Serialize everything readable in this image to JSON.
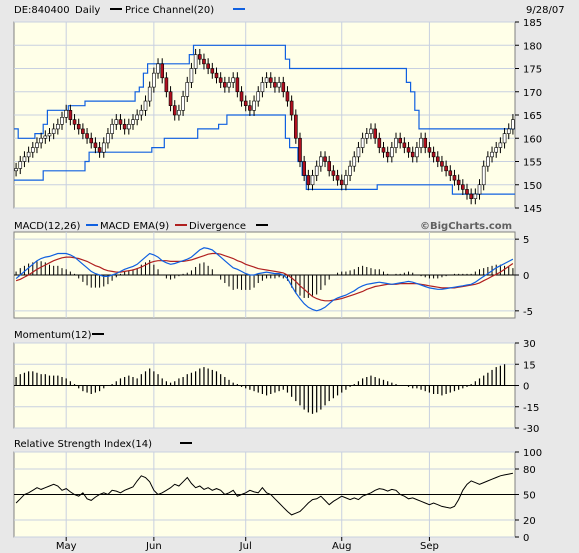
{
  "header": {
    "symbol": "DE:840400",
    "frequency": "Daily",
    "overlay": "Price Channel(20)",
    "date": "9/28/07",
    "watermark": "©BigCharts.com"
  },
  "colors": {
    "plot_bg": "#ffffe8",
    "frame_bg": "#e8e8e8",
    "up_candle": "#ffffff",
    "down_candle": "#b01020",
    "channel": "#1060e0",
    "macd_line": "#1060e0",
    "macd_ema": "#b02020",
    "bars": "#000000",
    "grid": "#c8d0e0"
  },
  "chart_data": [
    {
      "type": "candlestick",
      "title": "DE:840400 Daily",
      "legend": [
        "Price Channel(20)"
      ],
      "x_ticks": [
        "May",
        "Jun",
        "Jul",
        "Aug",
        "Sep"
      ],
      "x_tick_index": [
        12,
        33,
        55,
        78,
        99
      ],
      "y_ticks": [
        145,
        150,
        155,
        160,
        165,
        170,
        175,
        180,
        185
      ],
      "ylim": [
        145,
        185
      ],
      "n_days": 120,
      "close": [
        153.5,
        155,
        156,
        157,
        158,
        159,
        160,
        160.5,
        161,
        162,
        163,
        164.5,
        166,
        164,
        163,
        162,
        161,
        160,
        159,
        158,
        157,
        159,
        161,
        163,
        164,
        163,
        162,
        163,
        164,
        165,
        166,
        168,
        171,
        174,
        176,
        173,
        170,
        167,
        165,
        166,
        169,
        172,
        175,
        178,
        177,
        176,
        175,
        174,
        173,
        172,
        171,
        172,
        173,
        170,
        168,
        167,
        166,
        168,
        170,
        172,
        173,
        172,
        171,
        172,
        170,
        168,
        165,
        160,
        155,
        152,
        150,
        152,
        154,
        156,
        155,
        153,
        152,
        151,
        150,
        152,
        154,
        156,
        158,
        160,
        161,
        162,
        160,
        158,
        157,
        156,
        158,
        160,
        159,
        158,
        157,
        156,
        158,
        160,
        158,
        157,
        156,
        155,
        154,
        153,
        152,
        151,
        150,
        149,
        148,
        147,
        148,
        150,
        154,
        156,
        157,
        158,
        159,
        161,
        162,
        164
      ],
      "channel_upper": [
        162,
        160,
        160,
        160,
        160,
        161,
        161,
        163,
        166,
        166,
        166,
        166,
        166,
        167,
        167,
        167,
        167,
        168,
        168,
        168,
        168,
        168,
        168,
        168,
        168,
        168,
        168,
        168,
        168,
        170,
        171,
        174,
        176,
        176,
        176,
        176,
        176,
        176,
        176,
        176,
        176,
        176,
        178,
        180,
        180,
        180,
        180,
        180,
        180,
        180,
        180,
        180,
        180,
        180,
        180,
        180,
        180,
        180,
        180,
        180,
        180,
        180,
        180,
        180,
        180,
        177,
        175,
        175,
        175,
        175,
        175,
        175,
        175,
        175,
        175,
        175,
        175,
        175,
        175,
        175,
        175,
        175,
        175,
        175,
        175,
        175,
        175,
        175,
        175,
        175,
        175,
        175,
        175,
        175,
        172,
        170,
        166,
        162,
        162,
        162,
        162,
        162,
        162,
        162,
        162,
        162,
        162,
        162,
        162,
        162,
        162,
        162,
        162,
        162,
        162,
        162,
        162,
        162,
        162,
        162
      ],
      "channel_lower": [
        151,
        151,
        151,
        151,
        151,
        151,
        151,
        153,
        153,
        153,
        153,
        153,
        153,
        153,
        153,
        153,
        153,
        155,
        157,
        157,
        157,
        157,
        157,
        157,
        157,
        157,
        157,
        157,
        157,
        157,
        157,
        157,
        157,
        158,
        158,
        158,
        160,
        160,
        160,
        160,
        160,
        160,
        160,
        160,
        162,
        162,
        162,
        162,
        162,
        163,
        163,
        165,
        165,
        165,
        165,
        165,
        165,
        165,
        165,
        165,
        165,
        165,
        165,
        165,
        165,
        160,
        158,
        158,
        155,
        152,
        149,
        149,
        149,
        149,
        149,
        149,
        149,
        149,
        149,
        149,
        149,
        149,
        149,
        149,
        149,
        149,
        149,
        150,
        150,
        150,
        150,
        150,
        150,
        150,
        150,
        150,
        150,
        150,
        150,
        150,
        150,
        150,
        150,
        150,
        150,
        148,
        148,
        148,
        148,
        148,
        148,
        148,
        148,
        148,
        148,
        148,
        148,
        148,
        148,
        148
      ]
    },
    {
      "type": "line",
      "legend": [
        "MACD(12,26)",
        "MACD EMA(9)",
        "Divergence"
      ],
      "y_ticks": [
        5,
        0,
        -5
      ],
      "ylim": [
        -6,
        6
      ],
      "macd": [
        -0.5,
        0,
        0.5,
        1,
        1.5,
        2,
        2.3,
        2.5,
        2.6,
        2.8,
        3,
        3,
        3,
        2.8,
        2.5,
        2,
        1.5,
        1,
        0.5,
        0.2,
        0,
        -0.2,
        -0.2,
        0,
        0.2,
        0.5,
        0.8,
        1,
        1.2,
        1.5,
        2,
        2.5,
        3,
        2.8,
        2.5,
        2,
        1.7,
        1.5,
        1.6,
        1.8,
        2,
        2.2,
        2.5,
        3,
        3.5,
        3.8,
        3.7,
        3.5,
        3,
        2.5,
        2,
        1.5,
        1,
        0.8,
        0.5,
        0.2,
        0,
        0,
        0.2,
        0.3,
        0.4,
        0.3,
        0.2,
        0.2,
        0,
        -0.5,
        -1.5,
        -2.5,
        -3.3,
        -4,
        -4.5,
        -4.8,
        -5,
        -4.8,
        -4.5,
        -4,
        -3.5,
        -3.2,
        -3,
        -2.8,
        -2.5,
        -2.2,
        -1.8,
        -1.5,
        -1.3,
        -1.2,
        -1.1,
        -1,
        -1.1,
        -1.2,
        -1.3,
        -1.2,
        -1.1,
        -1,
        -0.9,
        -1,
        -1.2,
        -1.4,
        -1.6,
        -1.8,
        -1.9,
        -2,
        -2,
        -1.9,
        -1.8,
        -1.7,
        -1.6,
        -1.5,
        -1.4,
        -1.3,
        -1,
        -0.6,
        -0.2,
        0.2,
        0.6,
        1,
        1.3,
        1.6,
        1.9,
        2.2
      ],
      "macd_ema": [
        -0.8,
        -0.6,
        -0.3,
        0,
        0.4,
        0.8,
        1.1,
        1.4,
        1.7,
        2,
        2.2,
        2.4,
        2.5,
        2.5,
        2.4,
        2.3,
        2.1,
        1.9,
        1.6,
        1.3,
        1.1,
        0.8,
        0.6,
        0.5,
        0.4,
        0.4,
        0.5,
        0.6,
        0.7,
        0.9,
        1.1,
        1.4,
        1.7,
        1.9,
        2,
        2,
        2,
        1.9,
        1.9,
        1.9,
        1.9,
        2,
        2.1,
        2.3,
        2.5,
        2.7,
        2.9,
        3,
        3,
        2.9,
        2.7,
        2.5,
        2.3,
        2,
        1.8,
        1.5,
        1.3,
        1.1,
        0.9,
        0.8,
        0.7,
        0.6,
        0.5,
        0.4,
        0.3,
        0,
        -0.4,
        -0.9,
        -1.5,
        -2,
        -2.5,
        -3,
        -3.3,
        -3.5,
        -3.6,
        -3.6,
        -3.5,
        -3.4,
        -3.3,
        -3.1,
        -2.9,
        -2.7,
        -2.5,
        -2.3,
        -2,
        -1.8,
        -1.6,
        -1.5,
        -1.4,
        -1.3,
        -1.3,
        -1.3,
        -1.2,
        -1.2,
        -1.2,
        -1.2,
        -1.2,
        -1.3,
        -1.4,
        -1.5,
        -1.6,
        -1.7,
        -1.8,
        -1.8,
        -1.8,
        -1.8,
        -1.7,
        -1.6,
        -1.5,
        -1.4,
        -1.3,
        -1.1,
        -0.8,
        -0.5,
        -0.2,
        0.1,
        0.4,
        0.8,
        1.2,
        1.6
      ]
    },
    {
      "type": "bar",
      "legend": [
        "Momentum(12)"
      ],
      "y_ticks": [
        30,
        15,
        0,
        -15,
        -30
      ],
      "ylim": [
        -30,
        30
      ],
      "values": [
        6,
        8,
        9,
        10,
        10,
        9,
        8,
        8,
        7,
        7,
        7,
        6,
        5,
        3,
        1,
        -2,
        -4,
        -5,
        -6,
        -5,
        -4,
        -2,
        0,
        1,
        3,
        5,
        6,
        7,
        6,
        5,
        8,
        10,
        12,
        10,
        8,
        5,
        3,
        2,
        3,
        5,
        6,
        8,
        9,
        10,
        12,
        13,
        12,
        11,
        10,
        8,
        6,
        4,
        2,
        1,
        -1,
        -2,
        -3,
        -4,
        -5,
        -6,
        -7,
        -6,
        -5,
        -4,
        -3,
        -5,
        -8,
        -11,
        -14,
        -17,
        -19,
        -20,
        -19,
        -17,
        -14,
        -11,
        -9,
        -7,
        -5,
        -3,
        -1,
        1,
        3,
        5,
        6,
        7,
        6,
        5,
        4,
        3,
        2,
        1,
        0,
        0,
        -1,
        -2,
        -2,
        -3,
        -4,
        -5,
        -6,
        -6,
        -7,
        -6,
        -5,
        -4,
        -3,
        -2,
        -1,
        1,
        3,
        5,
        7,
        9,
        11,
        13,
        14,
        15
      ]
    },
    {
      "type": "line",
      "legend": [
        "Relative Strength Index(14)"
      ],
      "y_ticks": [
        100,
        80,
        50,
        20,
        0
      ],
      "ylim": [
        0,
        100
      ],
      "values": [
        40,
        45,
        50,
        52,
        55,
        58,
        56,
        58,
        60,
        62,
        60,
        55,
        57,
        53,
        50,
        48,
        52,
        45,
        43,
        47,
        50,
        52,
        50,
        55,
        54,
        52,
        55,
        57,
        59,
        66,
        72,
        70,
        65,
        55,
        50,
        52,
        55,
        58,
        62,
        60,
        65,
        70,
        63,
        58,
        60,
        56,
        58,
        55,
        57,
        55,
        50,
        52,
        55,
        48,
        50,
        52,
        55,
        53,
        52,
        58,
        52,
        50,
        45,
        40,
        35,
        30,
        26,
        28,
        30,
        35,
        40,
        44,
        45,
        48,
        43,
        38,
        42,
        45,
        48,
        46,
        44,
        46,
        44,
        48,
        50,
        52,
        55,
        57,
        56,
        54,
        56,
        55,
        50,
        48,
        45,
        46,
        44,
        42,
        40,
        38,
        40,
        38,
        36,
        35,
        34,
        36,
        44,
        55,
        62,
        66,
        64,
        62,
        64,
        66,
        68,
        70,
        72,
        73,
        74,
        75
      ]
    }
  ]
}
